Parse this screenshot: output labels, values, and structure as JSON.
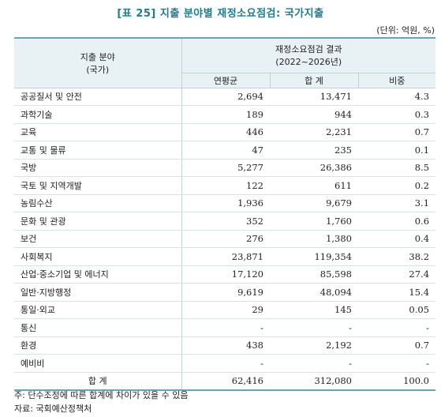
{
  "title": "[표 25] 지출 분야별 재정소요점검: 국가지출",
  "unit": "(단위: 억원, %)",
  "header": {
    "category": "지출 분야",
    "category_sub": "(국가)",
    "group": "재정소요점검 결과",
    "group_sub": "(2022~2026년)",
    "col_avg": "연평균",
    "col_sum": "합 계",
    "col_ratio": "비중"
  },
  "rows": [
    {
      "name": "공공질서 및 안전",
      "avg": "2,694",
      "sum": "13,471",
      "ratio": "4.3"
    },
    {
      "name": "과학기술",
      "avg": "189",
      "sum": "944",
      "ratio": "0.3"
    },
    {
      "name": "교육",
      "avg": "446",
      "sum": "2,231",
      "ratio": "0.7"
    },
    {
      "name": "교통 및 물류",
      "avg": "47",
      "sum": "235",
      "ratio": "0.1"
    },
    {
      "name": "국방",
      "avg": "5,277",
      "sum": "26,386",
      "ratio": "8.5"
    },
    {
      "name": "국토 및 지역개발",
      "avg": "122",
      "sum": "611",
      "ratio": "0.2"
    },
    {
      "name": "농림수산",
      "avg": "1,936",
      "sum": "9,679",
      "ratio": "3.1"
    },
    {
      "name": "문화 및 관광",
      "avg": "352",
      "sum": "1,760",
      "ratio": "0.6"
    },
    {
      "name": "보건",
      "avg": "276",
      "sum": "1,380",
      "ratio": "0.4"
    },
    {
      "name": "사회복지",
      "avg": "23,871",
      "sum": "119,354",
      "ratio": "38.2"
    },
    {
      "name": "산업·중소기업 및 에너지",
      "avg": "17,120",
      "sum": "85,598",
      "ratio": "27.4"
    },
    {
      "name": "일반·지방행정",
      "avg": "9,619",
      "sum": "48,094",
      "ratio": "15.4"
    },
    {
      "name": "통일·외교",
      "avg": "29",
      "sum": "145",
      "ratio": "0.05"
    },
    {
      "name": "통신",
      "avg": "-",
      "sum": "-",
      "ratio": "-"
    },
    {
      "name": "환경",
      "avg": "438",
      "sum": "2,192",
      "ratio": "0.7"
    },
    {
      "name": "예비비",
      "avg": "-",
      "sum": "-",
      "ratio": "-"
    }
  ],
  "total": {
    "label": "합 계",
    "avg": "62,416",
    "sum": "312,080",
    "ratio": "100.0"
  },
  "notes": {
    "note": "주: 단수조정에 따른 합계에 차이가 있을 수 있음",
    "source": "자료: 국회예산정책처"
  }
}
